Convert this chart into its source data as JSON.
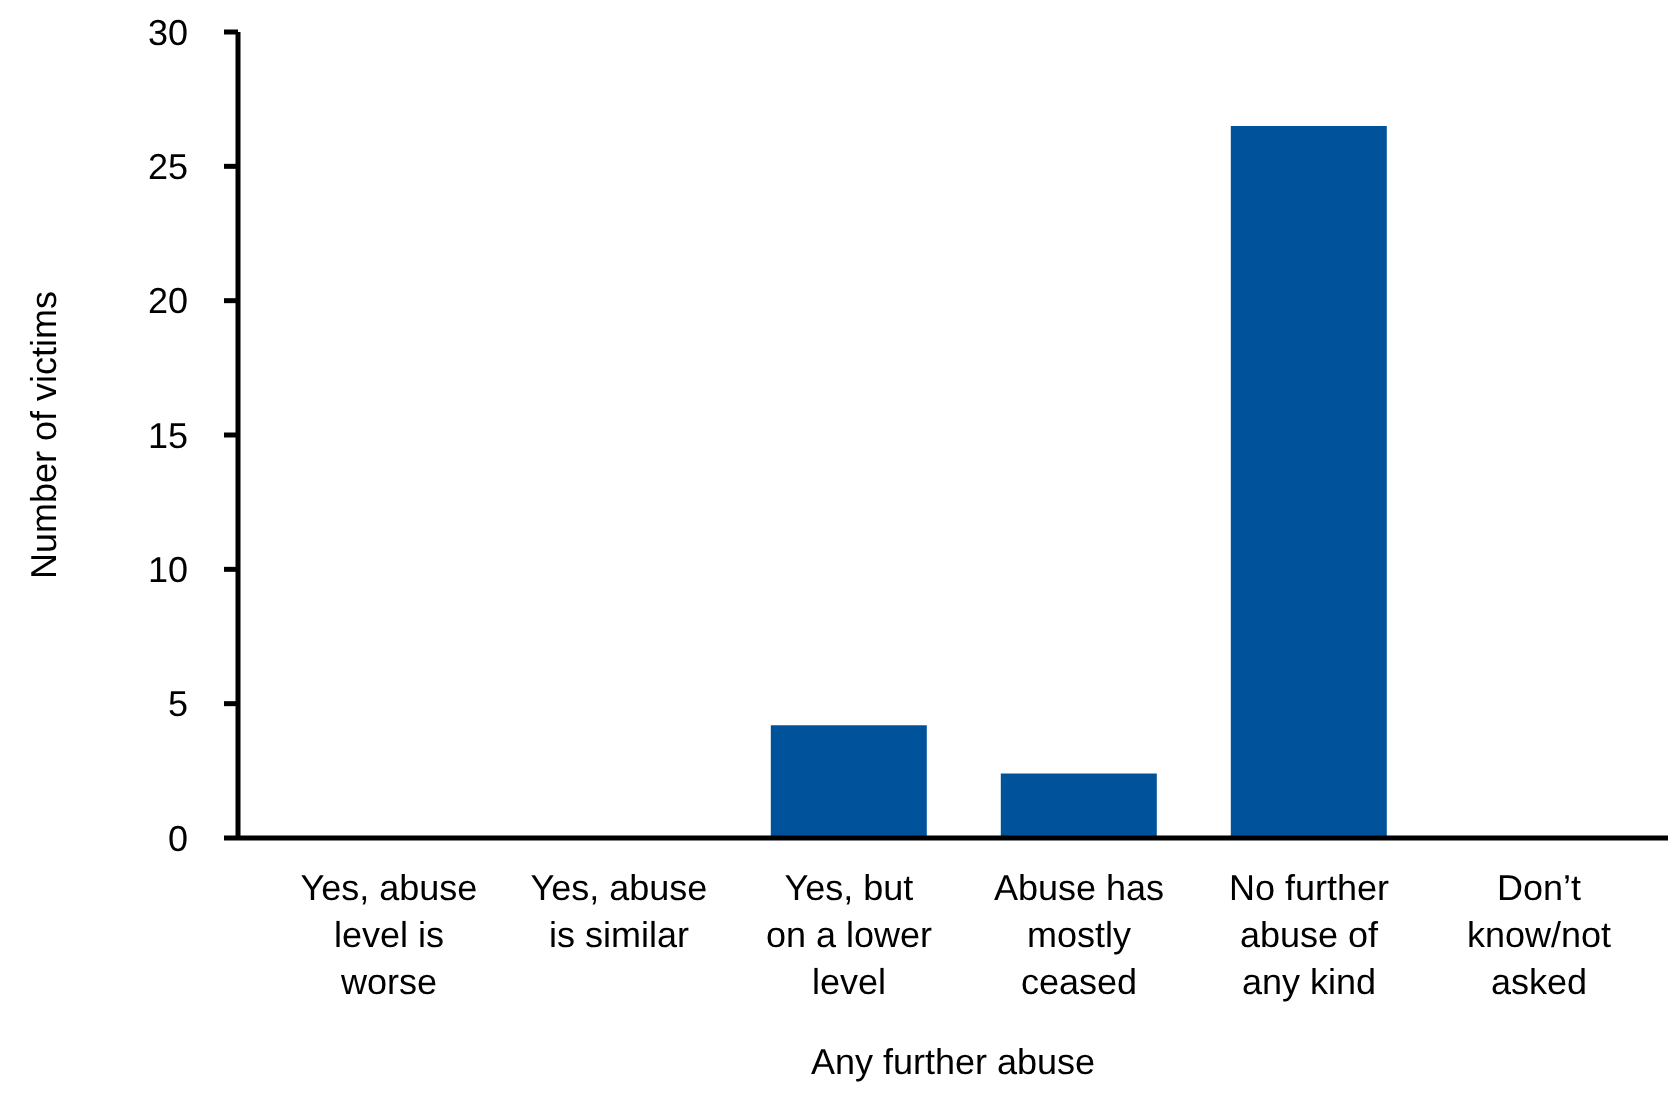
{
  "chart_data": {
    "type": "bar",
    "xlabel": "Any further abuse",
    "ylabel": "Number of victims",
    "categories": [
      "Yes, abuse level is worse",
      "Yes, abuse is similar",
      "Yes, but on a lower level",
      "Abuse has mostly ceased",
      "No further abuse of any kind",
      "Don’t know/not asked"
    ],
    "values": [
      0,
      0,
      4.2,
      2.4,
      26.5,
      0
    ],
    "color": "#00539b",
    "ylim": [
      0,
      30
    ],
    "yticks": [
      0,
      5,
      10,
      15,
      20,
      25,
      30
    ]
  }
}
